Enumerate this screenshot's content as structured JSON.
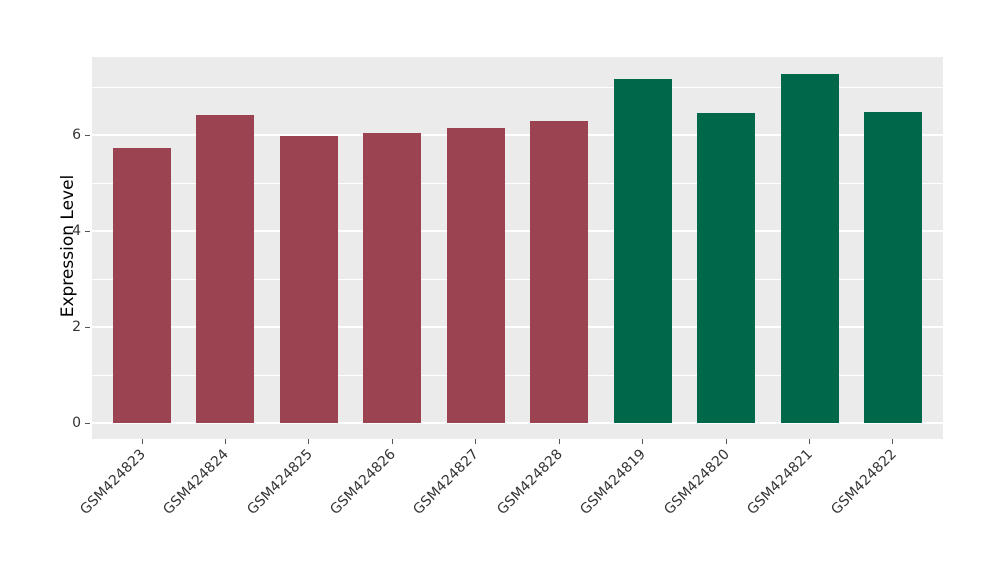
{
  "figure": {
    "background_color": "#ffffff",
    "panel_background_color": "#ebebeb",
    "grid_color": "#ffffff",
    "tick_color": "#555555",
    "tick_label_color": "#333333"
  },
  "chart_data": {
    "type": "bar",
    "title": "",
    "xlabel": "",
    "ylabel": "Expression Level",
    "categories": [
      "GSM424823",
      "GSM424824",
      "GSM424825",
      "GSM424826",
      "GSM424827",
      "GSM424828",
      "GSM424819",
      "GSM424820",
      "GSM424821",
      "GSM424822"
    ],
    "values": [
      5.74,
      6.43,
      5.98,
      6.05,
      6.15,
      6.3,
      7.17,
      6.47,
      7.29,
      6.5
    ],
    "bar_colors": [
      "#9c4351",
      "#9c4351",
      "#9c4351",
      "#9c4351",
      "#9c4351",
      "#9c4351",
      "#00684a",
      "#00684a",
      "#00684a",
      "#00684a"
    ],
    "group_colors": {
      "left_group": "#9c4351",
      "right_group": "#00684a"
    },
    "y_major_ticks": [
      0,
      2,
      4,
      6
    ],
    "y_minor_gridlines": [
      1,
      3,
      5,
      7
    ],
    "ylim": [
      -0.27,
      7.64
    ],
    "x_tick_label_rotation_deg": 45,
    "grid": "on",
    "legend": "none"
  }
}
